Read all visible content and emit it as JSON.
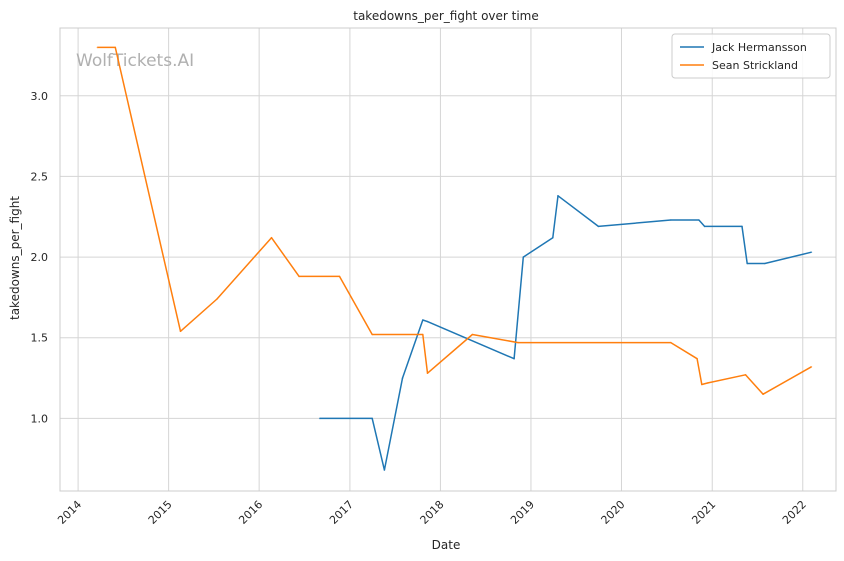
{
  "chart_data": {
    "type": "line",
    "title": "takedowns_per_fight over time",
    "xlabel": "Date",
    "ylabel": "takedowns_per_fight",
    "watermark": "WolfTickets.AI",
    "grid": true,
    "legend_position": "top-right",
    "x_ticks": [
      "2014",
      "2015",
      "2016",
      "2017",
      "2018",
      "2019",
      "2020",
      "2021",
      "2022"
    ],
    "x_tick_values": [
      "2014-01-01",
      "2015-01-01",
      "2016-01-01",
      "2017-01-01",
      "2018-01-01",
      "2019-01-01",
      "2020-01-01",
      "2021-01-01",
      "2022-01-01"
    ],
    "xlim": [
      "2013-10-20",
      "2022-05-15"
    ],
    "y_ticks": [
      "1.0",
      "1.5",
      "2.0",
      "2.5",
      "3.0"
    ],
    "y_tick_values": [
      1.0,
      1.5,
      2.0,
      2.5,
      3.0
    ],
    "ylim": [
      0.55,
      3.42
    ],
    "series": [
      {
        "name": "Jack Hermansson",
        "color": "#1f77b4",
        "points": [
          {
            "x": "2016-09-01",
            "y": 1.0
          },
          {
            "x": "2017-04-01",
            "y": 1.0
          },
          {
            "x": "2017-05-20",
            "y": 0.68
          },
          {
            "x": "2017-08-01",
            "y": 1.25
          },
          {
            "x": "2017-10-22",
            "y": 1.61
          },
          {
            "x": "2017-11-10",
            "y": 1.6
          },
          {
            "x": "2018-10-25",
            "y": 1.37
          },
          {
            "x": "2018-12-01",
            "y": 2.0
          },
          {
            "x": "2019-03-30",
            "y": 2.12
          },
          {
            "x": "2019-04-20",
            "y": 2.38
          },
          {
            "x": "2019-09-30",
            "y": 2.19
          },
          {
            "x": "2020-07-18",
            "y": 2.23
          },
          {
            "x": "2020-11-08",
            "y": 2.23
          },
          {
            "x": "2020-12-01",
            "y": 2.19
          },
          {
            "x": "2021-05-01",
            "y": 2.19
          },
          {
            "x": "2021-05-22",
            "y": 1.96
          },
          {
            "x": "2021-08-01",
            "y": 1.96
          },
          {
            "x": "2022-02-05",
            "y": 2.03
          }
        ]
      },
      {
        "name": "Sean Strickland",
        "color": "#ff7f0e",
        "points": [
          {
            "x": "2014-03-20",
            "y": 3.3
          },
          {
            "x": "2014-05-31",
            "y": 3.3
          },
          {
            "x": "2015-02-18",
            "y": 1.54
          },
          {
            "x": "2015-07-15",
            "y": 1.74
          },
          {
            "x": "2016-02-20",
            "y": 2.12
          },
          {
            "x": "2016-06-10",
            "y": 1.88
          },
          {
            "x": "2016-11-20",
            "y": 1.88
          },
          {
            "x": "2017-04-01",
            "y": 1.52
          },
          {
            "x": "2017-10-22",
            "y": 1.52
          },
          {
            "x": "2017-11-10",
            "y": 1.28
          },
          {
            "x": "2018-05-10",
            "y": 1.52
          },
          {
            "x": "2018-11-10",
            "y": 1.47
          },
          {
            "x": "2020-07-18",
            "y": 1.47
          },
          {
            "x": "2020-11-01",
            "y": 1.37
          },
          {
            "x": "2020-11-20",
            "y": 1.21
          },
          {
            "x": "2020-12-15",
            "y": 1.22
          },
          {
            "x": "2021-05-15",
            "y": 1.27
          },
          {
            "x": "2021-07-25",
            "y": 1.15
          },
          {
            "x": "2022-02-05",
            "y": 1.32
          }
        ]
      }
    ]
  }
}
